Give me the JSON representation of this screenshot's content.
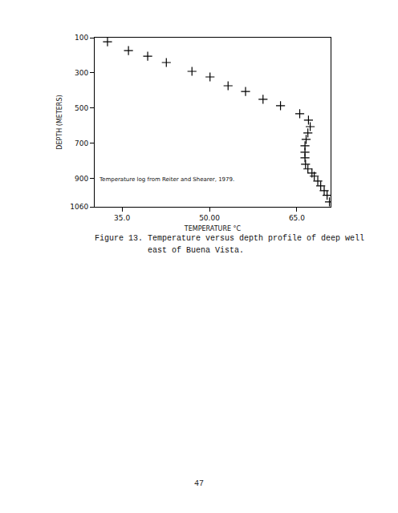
{
  "chart_data": {
    "type": "scatter",
    "title": "Figure 13. Temperature versus depth profile of deep well east of Buena Vista.",
    "x_label": "TEMPERATURE °C",
    "y_label": "DEPTH (METERS)",
    "annotations": [
      "Temperature log from Reiter and Shearer, 1979."
    ],
    "page": "47",
    "color": "#000000",
    "marker": "cross",
    "grid": false,
    "x": [
      32.5,
      36.1,
      39.4,
      42.6,
      47.0,
      50.1,
      53.2,
      56.2,
      59.2,
      62.2,
      65.5,
      67.0,
      67.3,
      66.9,
      66.6,
      66.4,
      66.4,
      66.4,
      66.5,
      66.9,
      67.6,
      68.0,
      68.6,
      69.1,
      69.7,
      70.2,
      70.6
    ],
    "values": [
      123,
      173,
      205,
      241,
      291,
      323,
      373,
      405,
      450,
      486,
      532,
      568,
      605,
      641,
      677,
      714,
      750,
      782,
      818,
      845,
      868,
      886,
      914,
      941,
      968,
      995,
      1032
    ],
    "xlim": [
      30.3,
      70.8
    ],
    "xticks": [
      {
        "value": 35,
        "label": "35.0"
      },
      {
        "value": 50,
        "label": "50.00"
      },
      {
        "value": 65,
        "label": "65.0"
      }
    ],
    "ylim": [
      1060,
      100
    ],
    "yticks": [
      100,
      300,
      500,
      700,
      900,
      1060
    ]
  }
}
